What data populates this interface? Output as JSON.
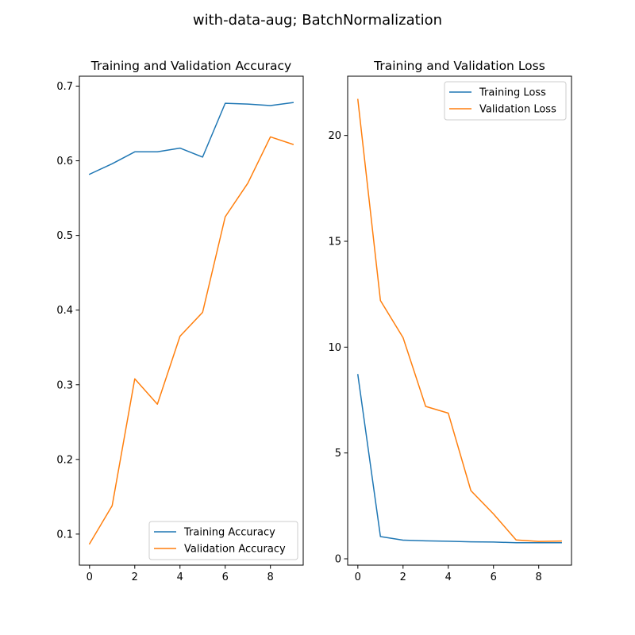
{
  "figure": {
    "suptitle": "with-data-aug; BatchNormalization"
  },
  "chart_data": [
    {
      "type": "line",
      "title": "Training and Validation Accuracy",
      "xlabel": "",
      "ylabel": "",
      "x": [
        0,
        1,
        2,
        3,
        4,
        5,
        6,
        7,
        8,
        9
      ],
      "xticks": [
        0,
        2,
        4,
        6,
        8
      ],
      "yticks": [
        0.1,
        0.2,
        0.3,
        0.4,
        0.5,
        0.6,
        0.7
      ],
      "xlim": [
        -0.45,
        9.45
      ],
      "ylim": [
        0.0584,
        0.7133
      ],
      "grid": false,
      "legend_position": "lower right",
      "series": [
        {
          "name": "Training Accuracy",
          "color": "#1f77b4",
          "values": [
            0.582,
            0.596,
            0.612,
            0.612,
            0.617,
            0.605,
            0.677,
            0.676,
            0.674,
            0.678
          ]
        },
        {
          "name": "Validation Accuracy",
          "color": "#ff7f0e",
          "values": [
            0.087,
            0.138,
            0.308,
            0.274,
            0.365,
            0.397,
            0.525,
            0.57,
            0.632,
            0.622
          ]
        }
      ]
    },
    {
      "type": "line",
      "title": "Training and Validation Loss",
      "xlabel": "",
      "ylabel": "",
      "x": [
        0,
        1,
        2,
        3,
        4,
        5,
        6,
        7,
        8,
        9
      ],
      "xticks": [
        0,
        2,
        4,
        6,
        8
      ],
      "yticks": [
        0,
        5,
        10,
        15,
        20
      ],
      "xlim": [
        -0.45,
        9.45
      ],
      "ylim": [
        -0.3,
        22.8
      ],
      "grid": false,
      "legend_position": "upper right",
      "series": [
        {
          "name": "Training Loss",
          "color": "#1f77b4",
          "values": [
            8.7,
            1.05,
            0.88,
            0.85,
            0.83,
            0.8,
            0.79,
            0.76,
            0.76,
            0.76
          ]
        },
        {
          "name": "Validation Loss",
          "color": "#ff7f0e",
          "values": [
            21.7,
            12.2,
            10.45,
            7.2,
            6.88,
            3.22,
            2.12,
            0.89,
            0.82,
            0.84
          ]
        }
      ]
    }
  ]
}
